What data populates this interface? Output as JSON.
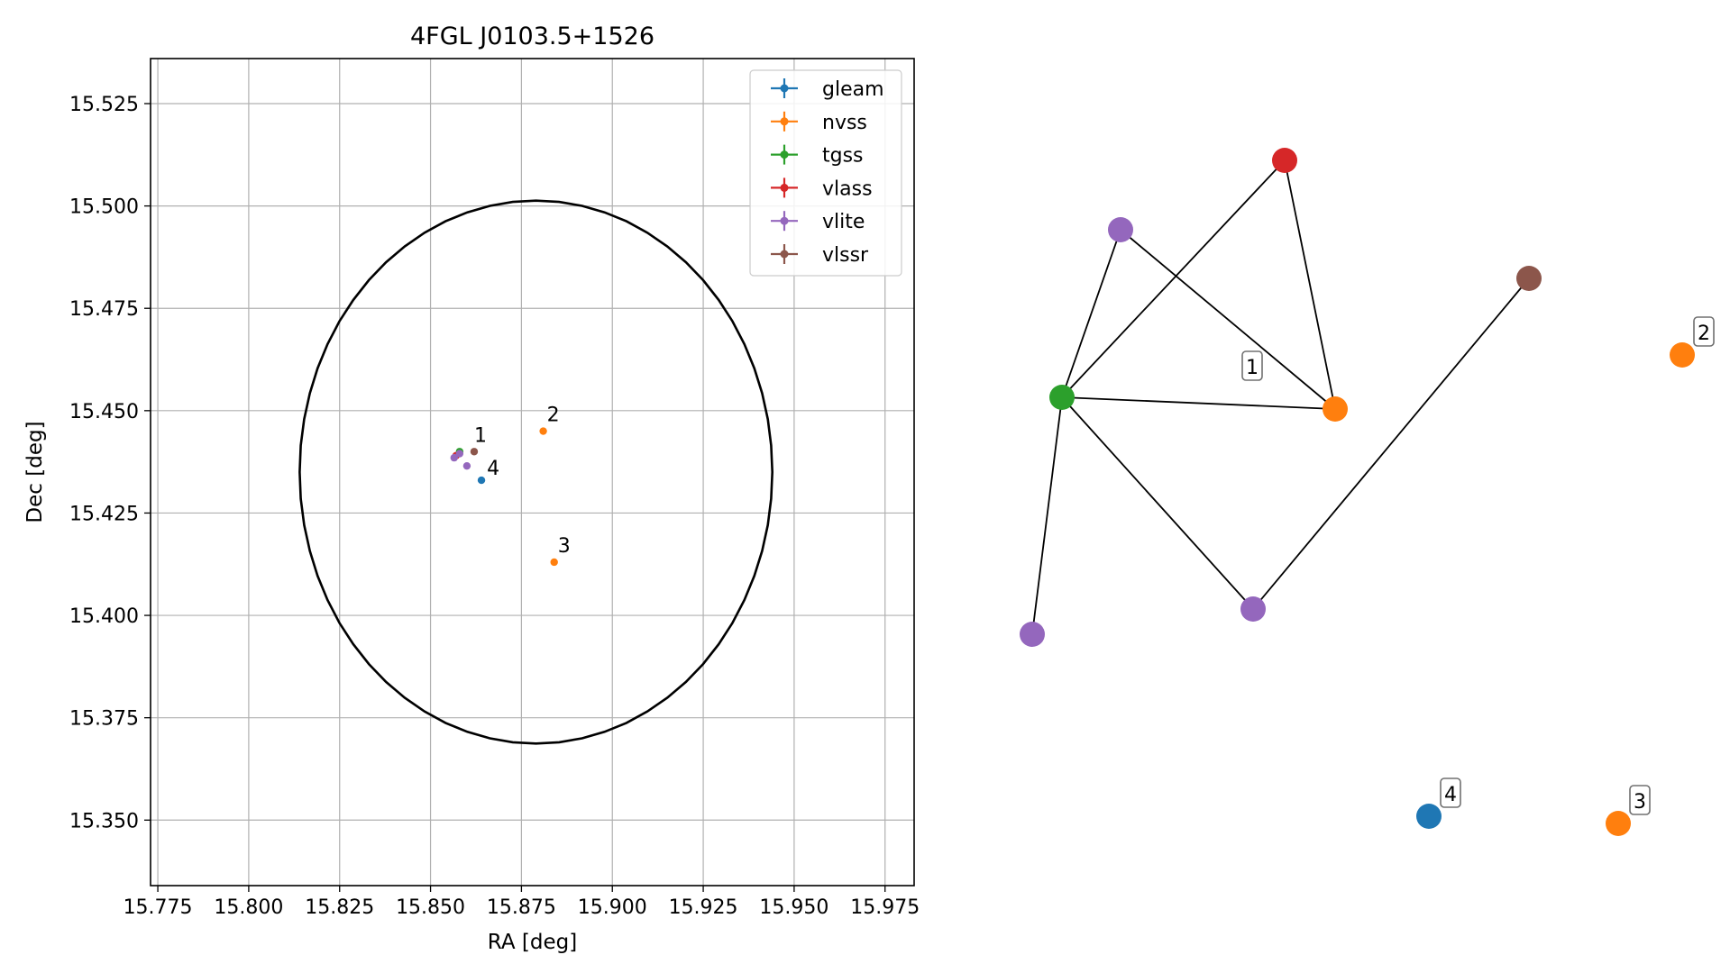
{
  "chart_data": [
    {
      "type": "scatter",
      "title": "4FGL J0103.5+1526",
      "xlabel": "RA [deg]",
      "ylabel": "Dec [deg]",
      "xlim": [
        15.773,
        15.983
      ],
      "ylim": [
        15.334,
        15.536
      ],
      "xticks": [
        15.775,
        15.8,
        15.825,
        15.85,
        15.875,
        15.9,
        15.925,
        15.95,
        15.975
      ],
      "xtick_labels": [
        "15.775",
        "15.800",
        "15.825",
        "15.850",
        "15.875",
        "15.900",
        "15.925",
        "15.950",
        "15.975"
      ],
      "yticks": [
        15.35,
        15.375,
        15.4,
        15.425,
        15.45,
        15.475,
        15.5,
        15.525
      ],
      "ytick_labels": [
        "15.350",
        "15.375",
        "15.400",
        "15.425",
        "15.450",
        "15.475",
        "15.500",
        "15.525"
      ],
      "grid": true,
      "legend_position": "top-right",
      "circle": {
        "center": [
          15.879,
          15.435
        ],
        "radius_deg": 0.065
      },
      "series": [
        {
          "name": "gleam",
          "color": "#1f77b4",
          "points": [
            {
              "x": 15.864,
              "y": 15.433
            }
          ]
        },
        {
          "name": "nvss",
          "color": "#ff7f0e",
          "points": [
            {
              "x": 15.881,
              "y": 15.445
            },
            {
              "x": 15.884,
              "y": 15.413
            }
          ]
        },
        {
          "name": "tgss",
          "color": "#2ca02c",
          "points": [
            {
              "x": 15.858,
              "y": 15.44
            }
          ]
        },
        {
          "name": "vlass",
          "color": "#d62728",
          "points": [
            {
              "x": 15.857,
              "y": 15.439
            }
          ]
        },
        {
          "name": "vlite",
          "color": "#9467bd",
          "points": [
            {
              "x": 15.8565,
              "y": 15.4385
            },
            {
              "x": 15.858,
              "y": 15.4395
            },
            {
              "x": 15.86,
              "y": 15.4365
            }
          ]
        },
        {
          "name": "vlssr",
          "color": "#8c564b",
          "points": [
            {
              "x": 15.862,
              "y": 15.44
            }
          ]
        }
      ],
      "annotations": [
        {
          "text": "1",
          "x": 15.8615,
          "y": 15.4415
        },
        {
          "text": "2",
          "x": 15.8815,
          "y": 15.4465
        },
        {
          "text": "3",
          "x": 15.8845,
          "y": 15.4145
        },
        {
          "text": "4",
          "x": 15.865,
          "y": 15.4335
        }
      ]
    },
    {
      "type": "network",
      "nodes": [
        {
          "id": "vlass",
          "color": "#d62728"
        },
        {
          "id": "vlite-a",
          "color": "#9467bd"
        },
        {
          "id": "vlssr",
          "color": "#8c564b"
        },
        {
          "id": "nvss-2",
          "color": "#ff7f0e",
          "label": "2"
        },
        {
          "id": "tgss",
          "color": "#2ca02c"
        },
        {
          "id": "nvss-1",
          "color": "#ff7f0e"
        },
        {
          "id": "vlite-b",
          "color": "#9467bd"
        },
        {
          "id": "vlite-c",
          "color": "#9467bd"
        },
        {
          "id": "gleam-4",
          "color": "#1f77b4",
          "label": "4"
        },
        {
          "id": "nvss-3",
          "color": "#ff7f0e",
          "label": "3"
        }
      ],
      "edges": [
        [
          "tgss",
          "vlass"
        ],
        [
          "tgss",
          "vlite-a"
        ],
        [
          "tgss",
          "nvss-1"
        ],
        [
          "tgss",
          "vlite-b"
        ],
        [
          "tgss",
          "vlite-c"
        ],
        [
          "vlass",
          "nvss-1"
        ],
        [
          "vlite-a",
          "nvss-1"
        ],
        [
          "vlssr",
          "vlite-b"
        ]
      ],
      "group_labels": [
        {
          "text": "1"
        }
      ]
    }
  ]
}
